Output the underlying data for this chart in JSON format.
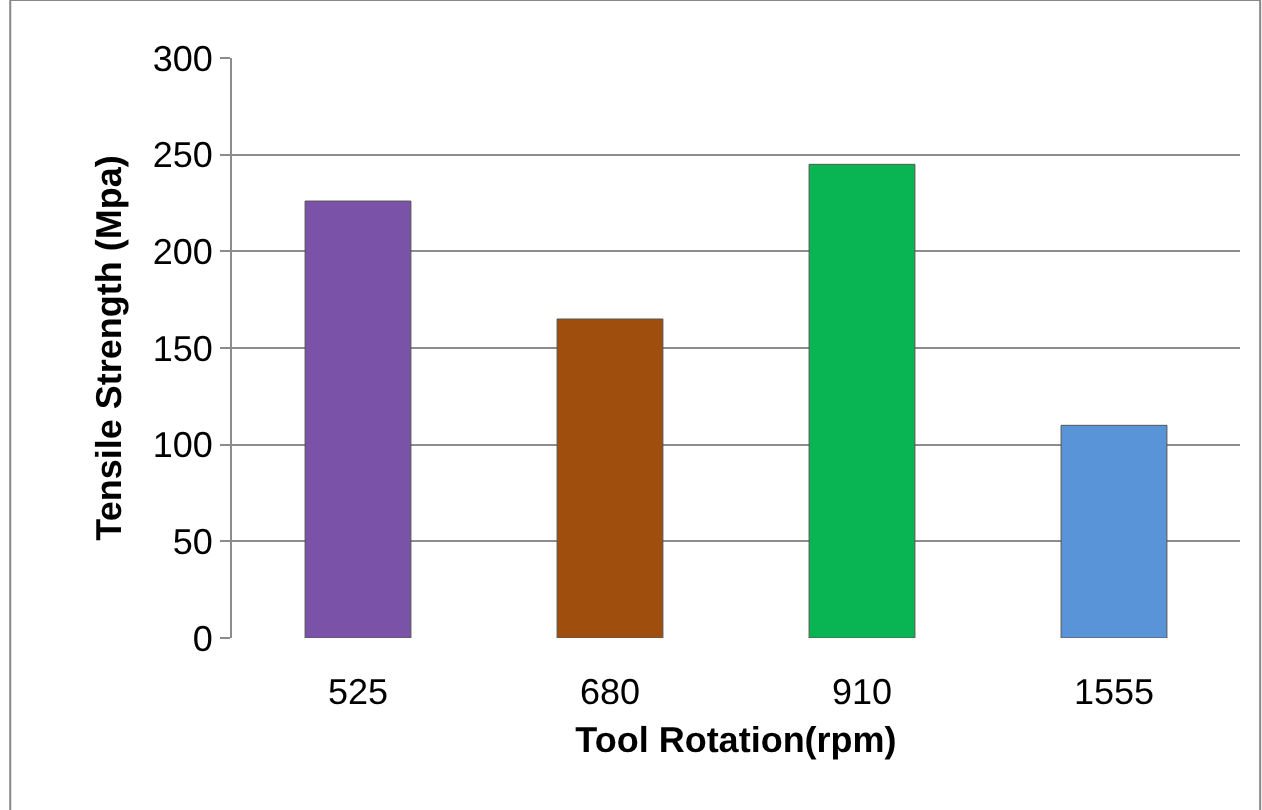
{
  "chart_data": {
    "type": "bar",
    "xlabel": "Tool Rotation(rpm)",
    "ylabel": "Tensile Strength (Mpa)",
    "categories": [
      "525",
      "680",
      "910",
      "1555"
    ],
    "values": [
      226,
      165,
      245,
      110
    ],
    "colors": [
      "#7a52a8",
      "#a04e0e",
      "#08b552",
      "#5a94d8"
    ],
    "ylim": [
      0,
      300
    ],
    "yticks": [
      0,
      50,
      100,
      150,
      200,
      250,
      300
    ],
    "grid": "y"
  }
}
